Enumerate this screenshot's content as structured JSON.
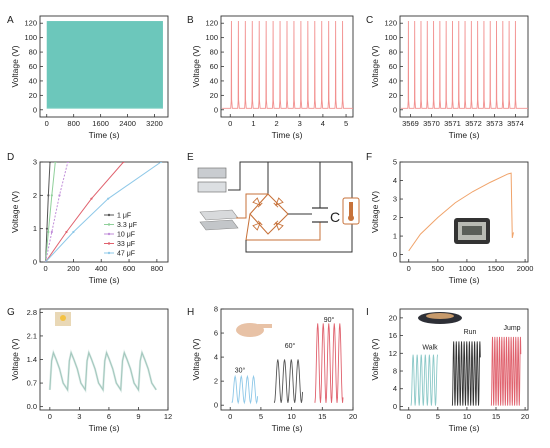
{
  "colors": {
    "teal": "#6cc7bb",
    "pink": "#f2908f",
    "gray": "#555555",
    "green": "#8fd09a",
    "violet": "#c08dd9",
    "red": "#e0616d",
    "sky": "#8ec8e8",
    "orange": "#f0a36a",
    "axis": "#333333",
    "component": "#c7723a"
  },
  "chart_data": [
    {
      "panel": "A",
      "type": "area",
      "xlabel": "Time (s)",
      "ylabel": "Voltage (V)",
      "xlim": [
        -200,
        3600
      ],
      "ylim": [
        -10,
        130
      ],
      "xticks": [
        0,
        800,
        1600,
        2400,
        3200
      ],
      "yticks": [
        0,
        20,
        40,
        60,
        80,
        100,
        120
      ],
      "x": [
        0,
        3450
      ],
      "upper": [
        123,
        123
      ],
      "lower": [
        2,
        2
      ],
      "description_series": "dense periodic pulses 0–123 V over full time range"
    },
    {
      "panel": "B",
      "type": "line",
      "xlabel": "Time (s)",
      "ylabel": "Voltage (V)",
      "xlim": [
        -0.4,
        5.3
      ],
      "ylim": [
        -10,
        130
      ],
      "xticks": [
        0,
        1,
        2,
        3,
        4,
        5
      ],
      "yticks": [
        0,
        20,
        40,
        60,
        80,
        100,
        120
      ],
      "pulse_period": 0.3,
      "pulse_start": 0.05,
      "pulse_end": 4.85,
      "peak": 123,
      "base": 2
    },
    {
      "panel": "C",
      "type": "line",
      "xlabel": "Time (s)",
      "ylabel": "Voltage (V)",
      "xlim": [
        3568.5,
        3574.6
      ],
      "ylim": [
        -10,
        130
      ],
      "xticks": [
        3569,
        3570,
        3571,
        3572,
        3573,
        3574
      ],
      "yticks": [
        0,
        20,
        40,
        60,
        80,
        100,
        120
      ],
      "pulse_period": 0.3,
      "pulse_start": 3568.9,
      "pulse_end": 3574.1,
      "peak": 123,
      "base": 2
    },
    {
      "panel": "D",
      "type": "line",
      "xlabel": "Time (s)",
      "ylabel": "Voltage (V)",
      "xlim": [
        -40,
        880
      ],
      "ylim": [
        0,
        3
      ],
      "xticks": [
        0,
        200,
        400,
        600,
        800
      ],
      "yticks": [
        0,
        1,
        2,
        3
      ],
      "series": [
        {
          "name": "1 μF",
          "x": [
            0,
            10,
            20,
            32
          ],
          "y": [
            0,
            1.0,
            2.0,
            3.0
          ]
        },
        {
          "name": "3.3 μF",
          "x": [
            0,
            20,
            45,
            70
          ],
          "y": [
            0,
            0.9,
            2.0,
            3.0
          ]
        },
        {
          "name": "10 μF",
          "x": [
            0,
            45,
            100,
            160
          ],
          "y": [
            0,
            0.9,
            2.0,
            3.0
          ]
        },
        {
          "name": "33 μF",
          "x": [
            0,
            150,
            330,
            560
          ],
          "y": [
            0,
            0.9,
            1.9,
            3.0
          ]
        },
        {
          "name": "47 μF",
          "x": [
            0,
            200,
            450,
            830
          ],
          "y": [
            0,
            0.9,
            1.9,
            3.0
          ]
        }
      ]
    },
    {
      "panel": "F",
      "type": "line",
      "xlabel": "Time (s)",
      "ylabel": "Voltage (V)",
      "xlim": [
        -150,
        2050
      ],
      "ylim": [
        -0.4,
        5
      ],
      "xticks": [
        0,
        500,
        1000,
        1500,
        2000
      ],
      "yticks": [
        0,
        1,
        2,
        3,
        4,
        5
      ],
      "x": [
        0,
        200,
        500,
        800,
        1100,
        1400,
        1700,
        1760,
        1780,
        1800
      ],
      "y": [
        0.2,
        1.1,
        2.0,
        2.8,
        3.4,
        3.9,
        4.35,
        4.4,
        0.9,
        1.2
      ],
      "inset": "digital thermometer"
    },
    {
      "panel": "G",
      "type": "line",
      "xlabel": "Time (s)",
      "ylabel": "Voltage (V)",
      "xlim": [
        -1,
        12
      ],
      "ylim": [
        -0.1,
        2.9
      ],
      "xticks": [
        0,
        3,
        6,
        9,
        12
      ],
      "yticks": [
        0.0,
        0.7,
        1.4,
        2.1,
        2.8
      ],
      "ytick_labels": [
        "0.0",
        "0.7",
        "1.4",
        "2.1",
        "2.8"
      ],
      "cycle_start": 0.0,
      "cycle_period": 1.8,
      "cycles": 6,
      "peak": 1.6,
      "trough": 0.5
    },
    {
      "panel": "H",
      "type": "line",
      "xlabel": "Time (s)",
      "ylabel": "Voltage (V)",
      "xlim": [
        -1.5,
        20
      ],
      "ylim": [
        -0.4,
        8
      ],
      "xticks": [
        0,
        5,
        10,
        15,
        20
      ],
      "yticks": [
        0,
        2,
        4,
        6,
        8
      ],
      "series": [
        {
          "name": "30°",
          "x_start": 0.3,
          "x_end": 4.5,
          "peak": 2.2,
          "period": 1.0
        },
        {
          "name": "60°",
          "x_start": 7.2,
          "x_end": 11.8,
          "peak": 3.6,
          "period": 1.1
        },
        {
          "name": "90°",
          "x_start": 13.8,
          "x_end": 18.4,
          "peak": 6.6,
          "period": 0.9
        }
      ]
    },
    {
      "panel": "I",
      "type": "line",
      "xlabel": "Time (s)",
      "ylabel": "Voltage (V)",
      "xlim": [
        -1.5,
        20.5
      ],
      "ylim": [
        -0.8,
        22
      ],
      "xticks": [
        0,
        5,
        10,
        15,
        20
      ],
      "yticks": [
        0,
        4,
        8,
        12,
        16,
        20
      ],
      "series": [
        {
          "name": "Walk",
          "x_start": 0.4,
          "x_end": 5.0,
          "peak": 11.5,
          "period": 0.7
        },
        {
          "name": "Run",
          "x_start": 7.5,
          "x_end": 12.3,
          "peak": 14.5,
          "period": 0.45
        },
        {
          "name": "Jump",
          "x_start": 14.2,
          "x_end": 19.3,
          "peak": 15.5,
          "period": 0.4
        }
      ]
    }
  ],
  "panel_labels": [
    "A",
    "B",
    "C",
    "D",
    "E",
    "F",
    "G",
    "H",
    "I"
  ],
  "circuit": {
    "capacitor_label": "C"
  }
}
